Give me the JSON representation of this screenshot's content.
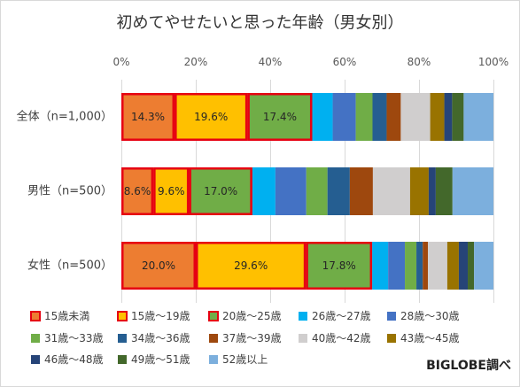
{
  "chart_data": {
    "type": "bar",
    "orientation": "horizontal",
    "stacked": true,
    "title": "初めてやせたいと思った年齢（男女別）",
    "categories": [
      "全体（n=1,000）",
      "男性（n=500）",
      "女性（n=500）"
    ],
    "xlim": [
      0,
      100
    ],
    "xticks": [
      {
        "value": 0,
        "label": "0%"
      },
      {
        "value": 20,
        "label": "20%"
      },
      {
        "value": 40,
        "label": "40%"
      },
      {
        "value": 60,
        "label": "60%"
      },
      {
        "value": 80,
        "label": "80%"
      },
      {
        "value": 100,
        "label": "100%"
      }
    ],
    "x_axis_position": "top",
    "grid": true,
    "legend": "bottom",
    "highlight_color": "#E60012",
    "series": [
      {
        "name": "15歳未満",
        "color": "#ED7D31",
        "highlighted": true,
        "values": [
          14.3,
          8.6,
          20.0
        ],
        "labels": [
          "14.3%",
          "8.6%",
          "20.0%"
        ]
      },
      {
        "name": "15歳～19歳",
        "color": "#FFC000",
        "highlighted": true,
        "values": [
          19.6,
          9.6,
          29.6
        ],
        "labels": [
          "19.6%",
          "9.6%",
          "29.6%"
        ]
      },
      {
        "name": "20歳～25歳",
        "color": "#70AD47",
        "highlighted": true,
        "values": [
          17.4,
          17.0,
          17.8
        ],
        "labels": [
          "17.4%",
          "17.0%",
          "17.8%"
        ]
      },
      {
        "name": "26歳～27歳",
        "color": "#00B0F0",
        "values": [
          5.5,
          6.2,
          4.3
        ]
      },
      {
        "name": "28歳～30歳",
        "color": "#4472C4",
        "values": [
          6.2,
          8.3,
          4.5
        ]
      },
      {
        "name": "31歳～33歳",
        "color": "#70AD47",
        "values": [
          4.5,
          5.7,
          3.1
        ]
      },
      {
        "name": "34歳～36歳",
        "color": "#255E91",
        "values": [
          3.8,
          6.0,
          1.7
        ]
      },
      {
        "name": "37歳～39歳",
        "color": "#9E480E",
        "values": [
          3.8,
          6.2,
          1.4
        ]
      },
      {
        "name": "40歳～42歳",
        "color": "#D0CECE",
        "values": [
          7.9,
          10.0,
          5.2
        ]
      },
      {
        "name": "43歳～45歳",
        "color": "#997300",
        "values": [
          3.8,
          5.0,
          3.1
        ]
      },
      {
        "name": "46歳～48歳",
        "color": "#264478",
        "values": [
          2.1,
          1.9,
          2.4
        ]
      },
      {
        "name": "49歳～51歳",
        "color": "#43682B",
        "values": [
          3.1,
          4.5,
          1.7
        ]
      },
      {
        "name": "52歳以上",
        "color": "#7CAFDD",
        "values": [
          8.0,
          11.0,
          5.2
        ]
      }
    ]
  },
  "source_note": "BIGLOBE調べ"
}
